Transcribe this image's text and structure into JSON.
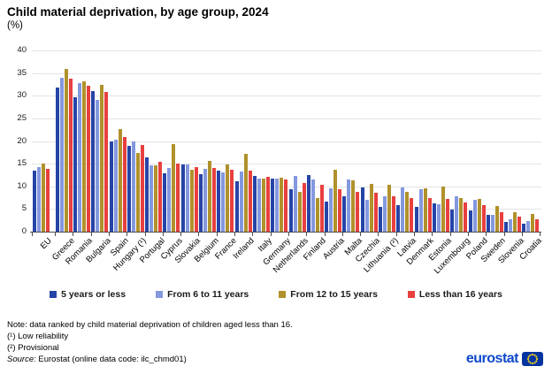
{
  "title": "Child material deprivation, by age group, 2024",
  "subtitle": "(%)",
  "legend": [
    {
      "label": "5 years or less",
      "color": "#2644A7"
    },
    {
      "label": "From 6 to 11 years",
      "color": "#8498DE"
    },
    {
      "label": "From 12 to 15 years",
      "color": "#B0912B"
    },
    {
      "label": "Less than 16 years",
      "color": "#E8403E"
    }
  ],
  "notes": {
    "note_line": "Note: data ranked by child material deprivation of children aged less than 16.",
    "footnote1": "(¹) Low reliability",
    "footnote2": "(²) Provisional",
    "source_label": "Source:",
    "source_rest": " Eurostat (online data code: ilc_chmd01)"
  },
  "logo": {
    "text": "eurostat"
  },
  "chart_data": {
    "type": "bar",
    "title": "Child material deprivation, by age group, 2024",
    "ylabel": "%",
    "ylim": [
      0,
      40
    ],
    "ytick_step": 5,
    "grid": true,
    "legend_position": "bottom",
    "categories": [
      "EU",
      "Greece",
      "Romania",
      "Bulgaria",
      "Spain",
      "Hungary (¹)",
      "Portugal",
      "Cyprus",
      "Slovakia",
      "Belgium",
      "France",
      "Ireland",
      "Italy",
      "Germany",
      "Netherlands",
      "Finland",
      "Austria",
      "Malta",
      "Czechia",
      "Lithuania (²)",
      "Latvia",
      "Denmark",
      "Estonia",
      "Luxembourg",
      "Poland",
      "Sweden",
      "Slovenia",
      "Croatia"
    ],
    "series": [
      {
        "name": "5 years or less",
        "values": [
          13.4,
          31.8,
          29.7,
          31.0,
          20.0,
          18.9,
          16.3,
          12.9,
          14.8,
          12.7,
          13.5,
          11.1,
          12.2,
          11.8,
          9.4,
          12.4,
          6.6,
          7.9,
          9.7,
          5.5,
          5.9,
          5.5,
          6.2,
          4.9,
          4.7,
          3.8,
          2.1,
          1.8
        ]
      },
      {
        "name": "From 6 to 11 years",
        "values": [
          14.2,
          33.9,
          32.7,
          29.0,
          20.2,
          20.0,
          14.7,
          14.0,
          14.8,
          13.9,
          13.1,
          13.3,
          11.8,
          11.8,
          12.2,
          11.6,
          9.5,
          11.5,
          7.1,
          7.9,
          9.7,
          9.3,
          6.1,
          7.9,
          7.0,
          3.8,
          2.7,
          2.3
        ]
      },
      {
        "name": "From 12 to 15 years",
        "values": [
          15.0,
          36.0,
          33.1,
          32.3,
          22.7,
          17.4,
          14.6,
          19.3,
          13.7,
          15.7,
          14.8,
          17.2,
          11.8,
          11.9,
          8.7,
          7.5,
          13.7,
          11.3,
          10.5,
          10.3,
          8.8,
          9.5,
          10.0,
          7.5,
          7.3,
          5.6,
          4.2,
          4.0
        ]
      },
      {
        "name": "Less than 16 years",
        "values": [
          13.9,
          33.7,
          32.1,
          30.8,
          20.9,
          19.1,
          15.4,
          15.1,
          14.2,
          14.0,
          13.7,
          13.4,
          12.1,
          11.6,
          10.7,
          10.4,
          9.3,
          8.8,
          8.6,
          7.9,
          7.5,
          7.4,
          7.3,
          6.4,
          5.9,
          4.3,
          3.3,
          2.7
        ]
      }
    ]
  }
}
